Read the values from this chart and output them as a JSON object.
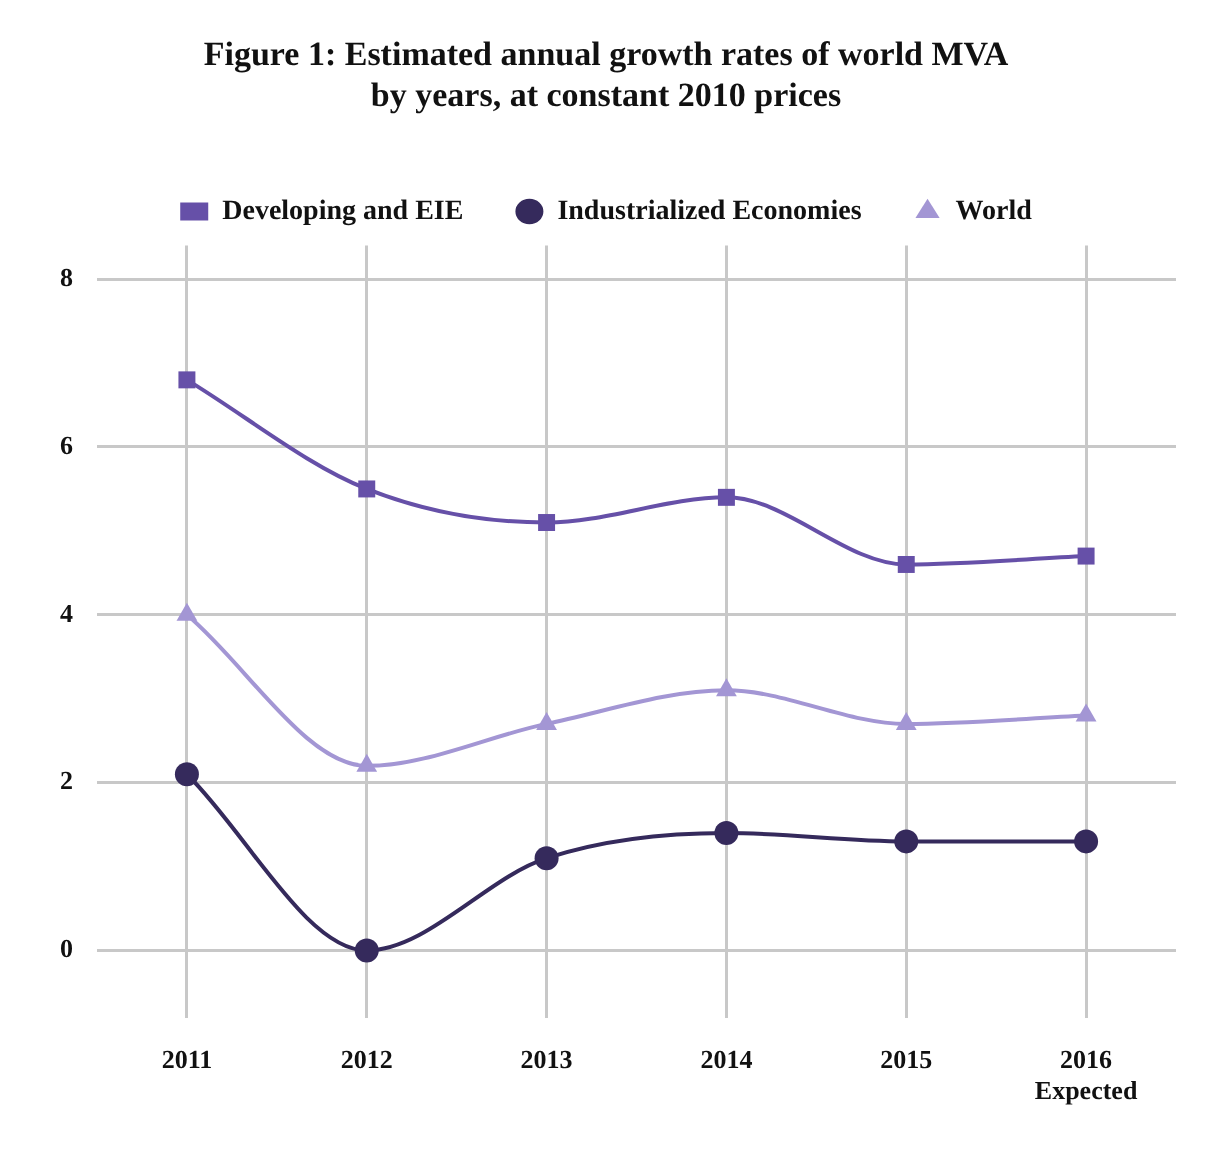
{
  "chart_data": {
    "type": "line",
    "title": "Figure 1: Estimated annual growth rates of world MVA\nby years, at constant 2010 prices",
    "categories": [
      "2011",
      "2012",
      "2013",
      "2014",
      "2015",
      "2016\nExpected"
    ],
    "series": [
      {
        "name": "Developing and EIE",
        "color": "#6650a8",
        "marker": "square",
        "values": [
          6.8,
          5.5,
          5.1,
          5.4,
          4.6,
          4.7
        ]
      },
      {
        "name": "Industrialized Economies",
        "color": "#352a5c",
        "marker": "circle",
        "values": [
          2.1,
          0,
          1.1,
          1.4,
          1.3,
          1.3
        ]
      },
      {
        "name": "World",
        "color": "#a396d4",
        "marker": "triangle",
        "values": [
          4.0,
          2.2,
          2.7,
          3.1,
          2.7,
          2.8
        ]
      }
    ],
    "ylim": [
      -0.8,
      8.4
    ],
    "yticks": [
      0,
      2,
      4,
      6,
      8
    ],
    "grid": true,
    "legend": "top"
  }
}
